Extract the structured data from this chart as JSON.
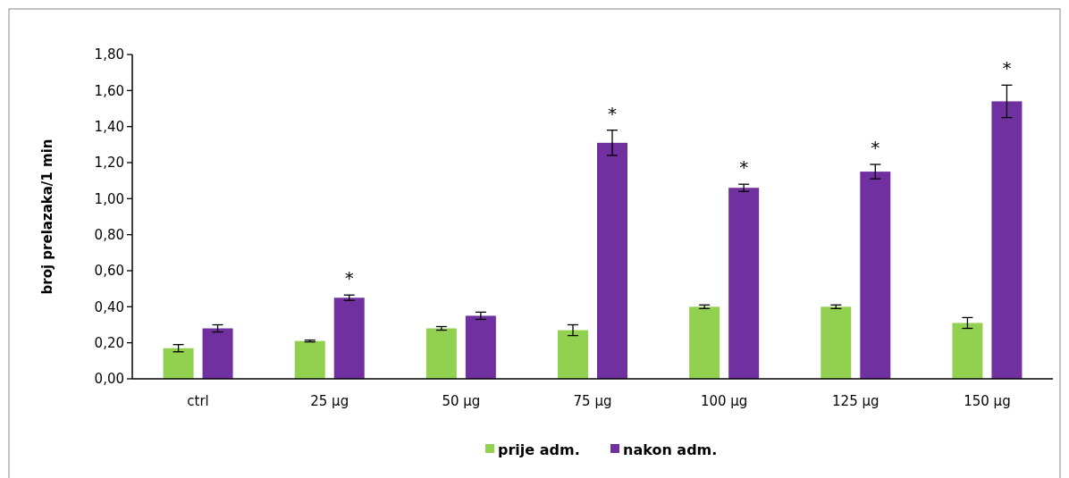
{
  "chart_data": {
    "type": "bar",
    "ylabel": "broj prelazaka/1 min",
    "categories": [
      "ctrl",
      "25 µg",
      "50 µg",
      "75 µg",
      "100 µg",
      "125 µg",
      "150 µg"
    ],
    "series": [
      {
        "name": "prije adm.",
        "color": "#92d050",
        "values": [
          0.17,
          0.21,
          0.28,
          0.27,
          0.4,
          0.4,
          0.31
        ],
        "errors": [
          0.02,
          0.005,
          0.01,
          0.03,
          0.01,
          0.01,
          0.03
        ]
      },
      {
        "name": "nakon adm.",
        "color": "#7030a0",
        "values": [
          0.28,
          0.45,
          0.35,
          1.31,
          1.06,
          1.15,
          1.54
        ],
        "errors": [
          0.02,
          0.015,
          0.02,
          0.07,
          0.02,
          0.04,
          0.09
        ],
        "value_labels": [
          null,
          "*",
          null,
          "*",
          "*",
          "*",
          "*"
        ]
      }
    ],
    "ylim": [
      0,
      1.8
    ],
    "yticks": [
      {
        "value": 0,
        "label": "0,00"
      },
      {
        "value": 0.2,
        "label": "0,20"
      },
      {
        "value": 0.4,
        "label": "0,40"
      },
      {
        "value": 0.6,
        "label": "0,60"
      },
      {
        "value": 0.8,
        "label": "0,80"
      },
      {
        "value": 1,
        "label": "1,00"
      },
      {
        "value": 1.2,
        "label": "1,20"
      },
      {
        "value": 1.4,
        "label": "1,40"
      },
      {
        "value": 1.6,
        "label": "1,60"
      },
      {
        "value": 1.8,
        "label": "1,80"
      }
    ],
    "legend": "bottom",
    "grid": false
  }
}
